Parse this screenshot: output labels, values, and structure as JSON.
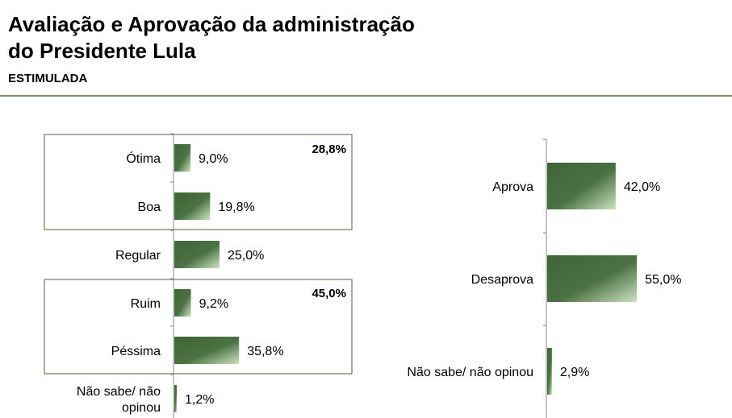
{
  "header": {
    "title_line1": "Avaliação e Aprovação da administração",
    "title_line2": "do Presidente Lula",
    "subtitle": "ESTIMULADA"
  },
  "colors": {
    "bar_dark": "#3f6437",
    "bar_light": "#cde3c3",
    "axis": "#8a8a8a",
    "box_border": "#6b7b5c",
    "rule": "#7a8f6a"
  },
  "chart_data": [
    {
      "type": "bar",
      "orientation": "horizontal",
      "categories": [
        "Ótima",
        "Boa",
        "Regular",
        "Ruim",
        "Péssima",
        "Não sabe/ não opinou"
      ],
      "category_lines": [
        [
          "Ótima"
        ],
        [
          "Boa"
        ],
        [
          "Regular"
        ],
        [
          "Ruim"
        ],
        [
          "Péssima"
        ],
        [
          "Não sabe/ não",
          "opinou"
        ]
      ],
      "values": [
        9.0,
        19.8,
        25.0,
        9.2,
        35.8,
        1.2
      ],
      "value_labels": [
        "9,0%",
        "19,8%",
        "25,0%",
        "9,2%",
        "35,8%",
        "1,2%"
      ],
      "groups": [
        {
          "label": "28,8%",
          "categories": [
            "Ótima",
            "Boa"
          ]
        },
        {
          "label": "45,0%",
          "categories": [
            "Ruim",
            "Péssima"
          ]
        }
      ],
      "xlim": [
        0,
        100
      ],
      "grid": false
    },
    {
      "type": "bar",
      "orientation": "horizontal",
      "categories": [
        "Aprova",
        "Desaprova",
        "Não sabe/ não opinou"
      ],
      "category_lines": [
        [
          "Aprova"
        ],
        [
          "Desaprova"
        ],
        [
          "Não sabe/ não opinou"
        ]
      ],
      "values": [
        42.0,
        55.0,
        2.9
      ],
      "value_labels": [
        "42,0%",
        "55,0%",
        "2,9%"
      ],
      "xlim": [
        0,
        100
      ],
      "grid": false
    }
  ]
}
